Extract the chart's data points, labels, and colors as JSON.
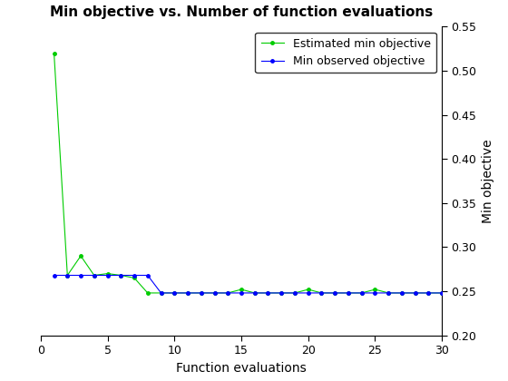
{
  "title": "Min objective vs. Number of function evaluations",
  "xlabel": "Function evaluations",
  "ylabel": "Min objective",
  "xlim": [
    0,
    30
  ],
  "ylim": [
    0.2,
    0.55
  ],
  "yticks": [
    0.2,
    0.25,
    0.3,
    0.35,
    0.4,
    0.45,
    0.5,
    0.55
  ],
  "xticks": [
    0,
    5,
    10,
    15,
    20,
    25,
    30
  ],
  "blue_x": [
    1,
    2,
    3,
    4,
    5,
    6,
    7,
    8,
    9,
    10,
    11,
    12,
    13,
    14,
    15,
    16,
    17,
    18,
    19,
    20,
    21,
    22,
    23,
    24,
    25,
    26,
    27,
    28,
    29,
    30
  ],
  "blue_y": [
    0.268,
    0.268,
    0.268,
    0.268,
    0.268,
    0.268,
    0.268,
    0.268,
    0.248,
    0.248,
    0.248,
    0.248,
    0.248,
    0.248,
    0.248,
    0.248,
    0.248,
    0.248,
    0.248,
    0.248,
    0.248,
    0.248,
    0.248,
    0.248,
    0.248,
    0.248,
    0.248,
    0.248,
    0.248,
    0.248
  ],
  "green_x": [
    1,
    2,
    3,
    4,
    5,
    6,
    7,
    8,
    9,
    10,
    11,
    12,
    13,
    14,
    15,
    16,
    17,
    18,
    19,
    20,
    21,
    22,
    23,
    24,
    25,
    26,
    27,
    28,
    29,
    30
  ],
  "green_y": [
    0.52,
    0.268,
    0.29,
    0.268,
    0.27,
    0.268,
    0.265,
    0.248,
    0.248,
    0.248,
    0.248,
    0.248,
    0.248,
    0.248,
    0.252,
    0.248,
    0.248,
    0.248,
    0.248,
    0.252,
    0.248,
    0.248,
    0.248,
    0.248,
    0.252,
    0.248,
    0.248,
    0.248,
    0.248,
    0.248
  ],
  "blue_color": "#0000ff",
  "green_color": "#00cc00",
  "blue_label": "Min observed objective",
  "green_label": "Estimated min objective",
  "marker": ".",
  "linewidth": 0.8,
  "markersize": 5,
  "background_color": "#ffffff",
  "axes_background": "#f0f0f0",
  "title_fontsize": 11,
  "axis_fontsize": 10,
  "tick_fontsize": 9,
  "legend_fontsize": 9
}
